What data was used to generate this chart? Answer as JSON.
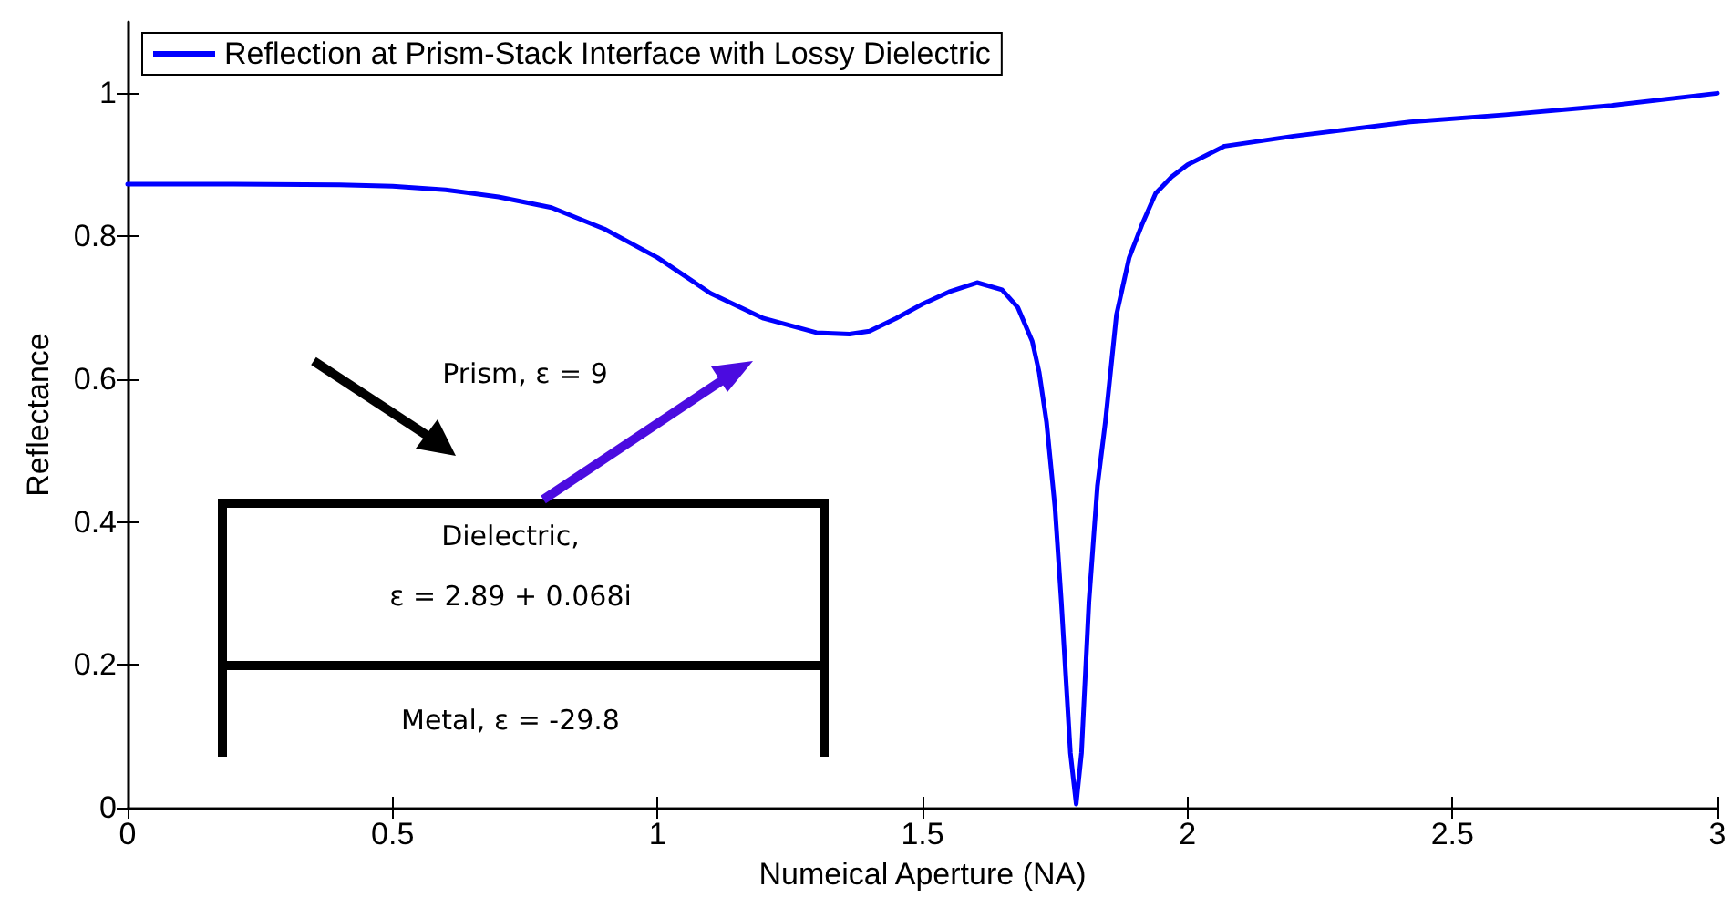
{
  "chart_data": {
    "type": "line",
    "xlabel": "Numeical Aperture (NA)",
    "ylabel": "Reflectance",
    "x": [
      0,
      0.2,
      0.4,
      0.5,
      0.6,
      0.7,
      0.8,
      0.9,
      1.0,
      1.1,
      1.2,
      1.3,
      1.362,
      1.4,
      1.45,
      1.5,
      1.55,
      1.603,
      1.65,
      1.68,
      1.707,
      1.72,
      1.734,
      1.75,
      1.762,
      1.779,
      1.79,
      1.8,
      1.814,
      1.83,
      1.845,
      1.866,
      1.89,
      1.914,
      1.94,
      1.97,
      2.0,
      2.07,
      2.2,
      2.42,
      2.6,
      2.8,
      3.0
    ],
    "series": [
      {
        "name": "Reflection at Prism-Stack Interface with Lossy Dielectric",
        "color": "#0000ff",
        "values": [
          0.873,
          0.873,
          0.872,
          0.87,
          0.865,
          0.855,
          0.84,
          0.81,
          0.77,
          0.72,
          0.685,
          0.665,
          0.663,
          0.667,
          0.685,
          0.705,
          0.722,
          0.735,
          0.725,
          0.7,
          0.653,
          0.61,
          0.54,
          0.42,
          0.288,
          0.077,
          0.005,
          0.077,
          0.288,
          0.45,
          0.54,
          0.69,
          0.77,
          0.816,
          0.86,
          0.883,
          0.9,
          0.926,
          0.94,
          0.96,
          0.97,
          0.983,
          1.0
        ]
      }
    ],
    "xlim": [
      0,
      3
    ],
    "xticks": [
      0,
      0.5,
      1,
      1.5,
      2,
      2.5,
      3
    ],
    "ylim": [
      0,
      1.1
    ],
    "yticks": [
      0,
      0.2,
      0.4,
      0.6,
      0.8,
      1
    ],
    "legend": "top left",
    "grid": false,
    "marker": "none",
    "line_style": "solid",
    "annotations": [
      "Prism, ε = 9",
      "Dielectric,",
      "ε = 2.89 + 0.068i",
      "Metal, ε = -29.8"
    ]
  }
}
